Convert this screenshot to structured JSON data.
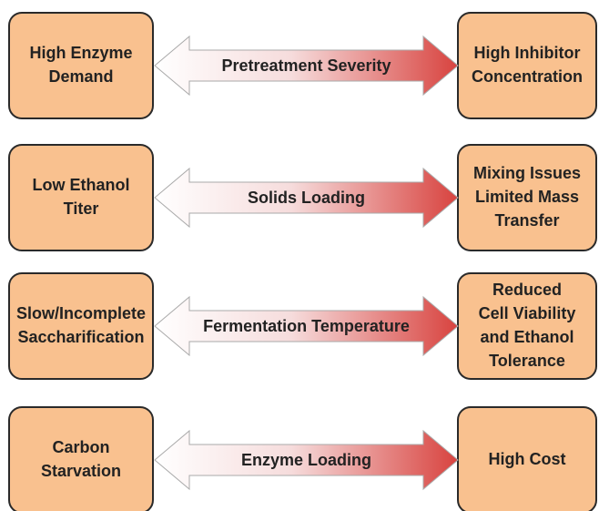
{
  "rows": [
    {
      "left": [
        "High Enzyme",
        "Demand"
      ],
      "center": "Pretreatment Severity",
      "right": [
        "High Inhibitor",
        "Concentration"
      ]
    },
    {
      "left": [
        "Low Ethanol",
        "Titer"
      ],
      "center": "Solids Loading",
      "right": [
        "Mixing Issues",
        "Limited Mass",
        "Transfer"
      ]
    },
    {
      "left": [
        "Slow/Incomplete",
        "Saccharification"
      ],
      "center": "Fermentation Temperature",
      "right": [
        "Reduced",
        "Cell Viability",
        "and Ethanol",
        "Tolerance"
      ]
    },
    {
      "left": [
        "Carbon",
        "Starvation"
      ],
      "center": "Enzyme Loading",
      "right": [
        "High Cost"
      ]
    }
  ]
}
